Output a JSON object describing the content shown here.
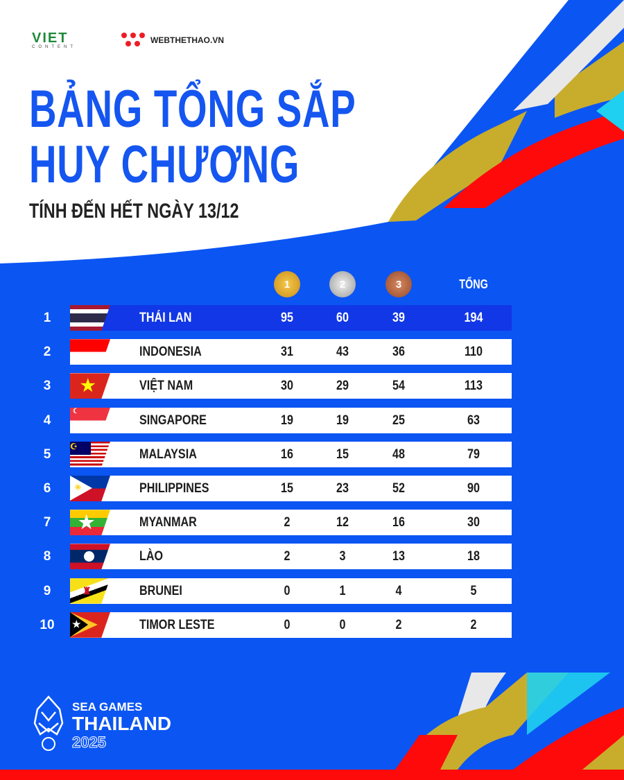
{
  "logos": {
    "viet_content": "VIET",
    "viet_content_sub": "CONTENT",
    "webthethao": "WEBTHETHAO.VN",
    "sea_games_line1": "SEA GAMES",
    "sea_games_line2": "THAILAND",
    "sea_games_year": "2025"
  },
  "title": {
    "line1": "BẢNG TỔNG SẮP",
    "line2": "HUY CHƯƠNG",
    "subtitle": "TÍNH ĐẾN HẾT NGÀY 13/12"
  },
  "header": {
    "gold": "1",
    "silver": "2",
    "bronze": "3",
    "total": "TỔNG"
  },
  "colors": {
    "background": "#0b55f3",
    "title": "#1556f0",
    "highlight_row": "#1237e6",
    "gold": "#e0a92a",
    "silver": "#b8b8b8",
    "bronze": "#b0633c",
    "accent_red": "#ff0a0a",
    "accent_gold": "#c8ad2c",
    "accent_cyan": "#1fd0f0"
  },
  "rows": [
    {
      "rank": "1",
      "country": "THÁI LAN",
      "flag": "thailand",
      "gold": "95",
      "silver": "60",
      "bronze": "39",
      "total": "194"
    },
    {
      "rank": "2",
      "country": "INDONESIA",
      "flag": "indonesia",
      "gold": "31",
      "silver": "43",
      "bronze": "36",
      "total": "110"
    },
    {
      "rank": "3",
      "country": "VIỆT NAM",
      "flag": "vietnam",
      "gold": "30",
      "silver": "29",
      "bronze": "54",
      "total": "113"
    },
    {
      "rank": "4",
      "country": "SINGAPORE",
      "flag": "singapore",
      "gold": "19",
      "silver": "19",
      "bronze": "25",
      "total": "63"
    },
    {
      "rank": "5",
      "country": "MALAYSIA",
      "flag": "malaysia",
      "gold": "16",
      "silver": "15",
      "bronze": "48",
      "total": "79"
    },
    {
      "rank": "6",
      "country": "PHILIPPINES",
      "flag": "philippines",
      "gold": "15",
      "silver": "23",
      "bronze": "52",
      "total": "90"
    },
    {
      "rank": "7",
      "country": "MYANMAR",
      "flag": "myanmar",
      "gold": "2",
      "silver": "12",
      "bronze": "16",
      "total": "30"
    },
    {
      "rank": "8",
      "country": "LÀO",
      "flag": "laos",
      "gold": "2",
      "silver": "3",
      "bronze": "13",
      "total": "18"
    },
    {
      "rank": "9",
      "country": "BRUNEI",
      "flag": "brunei",
      "gold": "0",
      "silver": "1",
      "bronze": "4",
      "total": "5"
    },
    {
      "rank": "10",
      "country": "TIMOR LESTE",
      "flag": "timor-leste",
      "gold": "0",
      "silver": "0",
      "bronze": "2",
      "total": "2"
    }
  ]
}
